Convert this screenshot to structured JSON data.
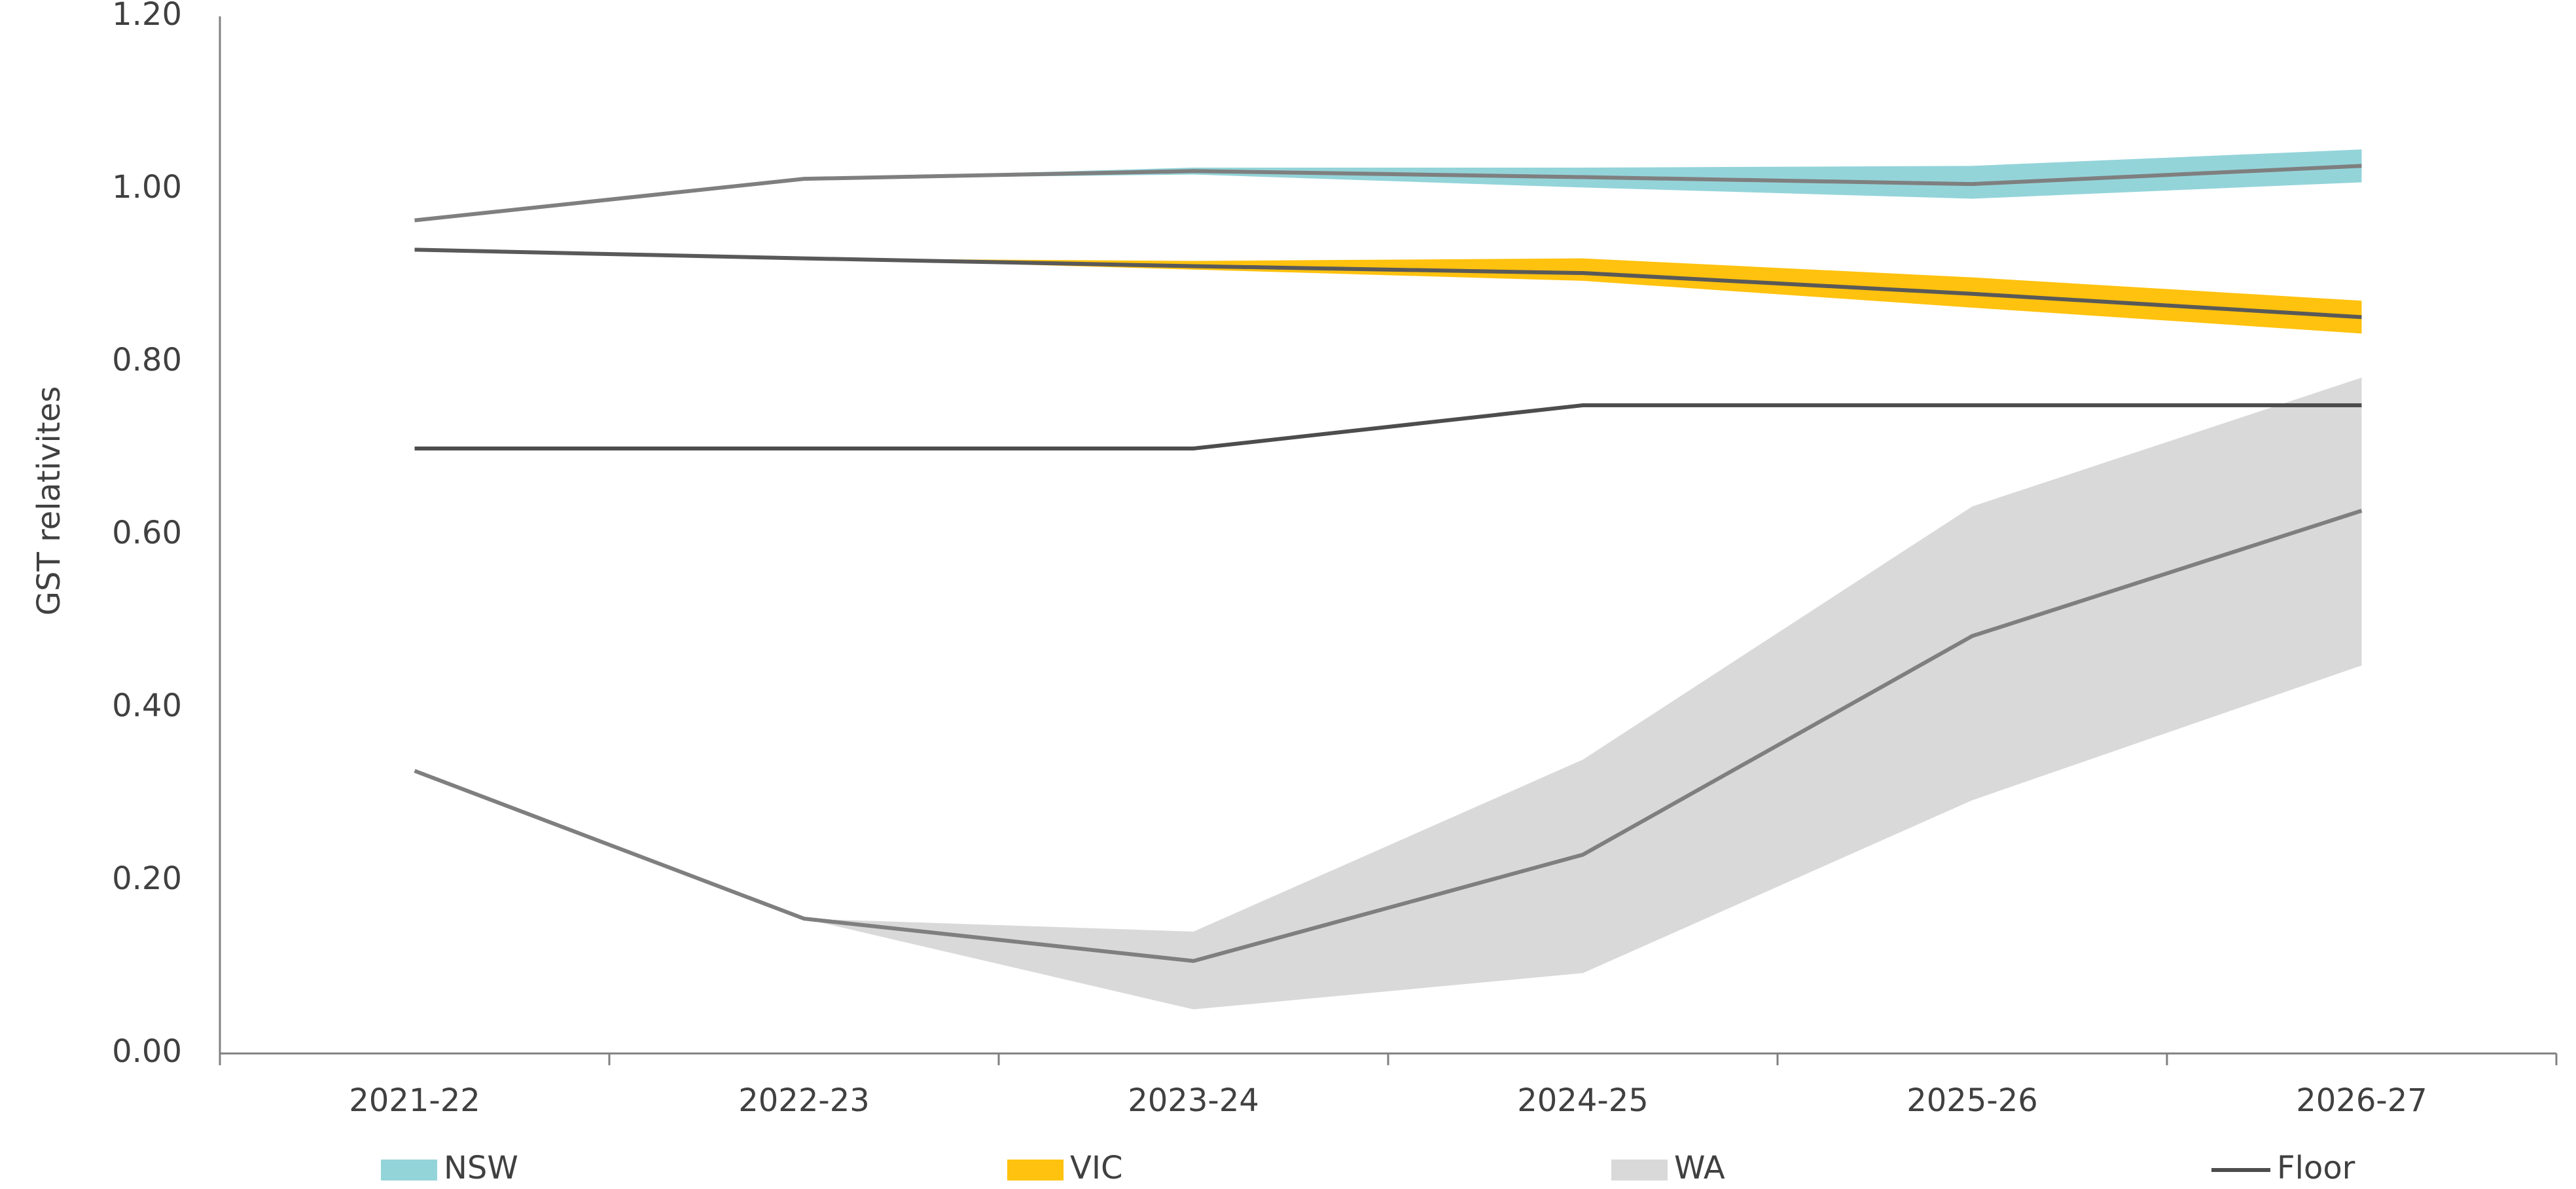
{
  "chart_data": {
    "type": "band-line",
    "y_label": "GST relativites",
    "categories": [
      "2021-22",
      "2022-23",
      "2023-24",
      "2024-25",
      "2025-26",
      "2026-27"
    ],
    "ylim": [
      0,
      1.2
    ],
    "yticks": [
      {
        "value": 0,
        "label": "0.00"
      },
      {
        "value": 0.2,
        "label": "0.20"
      },
      {
        "value": 0.4,
        "label": "0.40"
      },
      {
        "value": 0.6,
        "label": "0.60"
      },
      {
        "value": 0.8,
        "label": "0.80"
      },
      {
        "value": 1.0,
        "label": "1.00"
      },
      {
        "value": 1.2,
        "label": "1.20"
      }
    ],
    "series": [
      {
        "name": "NSW",
        "color": "#93d4d9",
        "line_color": "#7f7f7f",
        "values": [
          0.964,
          1.012,
          1.021,
          1.014,
          1.006,
          1.027
        ],
        "low": [
          null,
          1.012,
          1.017,
          1.002,
          0.989,
          1.008
        ],
        "high": [
          null,
          1.012,
          1.025,
          1.025,
          1.027,
          1.046
        ]
      },
      {
        "name": "VIC",
        "color": "#ffc20e",
        "line_color": "#595959",
        "values": [
          0.93,
          0.92,
          0.911,
          0.903,
          0.879,
          0.852
        ],
        "low": [
          null,
          0.92,
          0.907,
          0.894,
          0.863,
          0.833
        ],
        "high": [
          null,
          0.92,
          0.917,
          0.92,
          0.898,
          0.871
        ]
      },
      {
        "name": "WA",
        "color": "#d9d9d9",
        "line_color": "#7f7f7f",
        "values": [
          0.327,
          0.156,
          0.107,
          0.23,
          0.483,
          0.628
        ],
        "low": [
          null,
          0.156,
          0.051,
          0.093,
          0.293,
          0.449
        ],
        "high": [
          null,
          0.156,
          0.141,
          0.34,
          0.633,
          0.782
        ]
      },
      {
        "name": "Floor",
        "color": "#4d4d4d",
        "values": [
          0.7,
          0.7,
          0.7,
          0.75,
          0.75,
          0.75
        ]
      }
    ]
  }
}
